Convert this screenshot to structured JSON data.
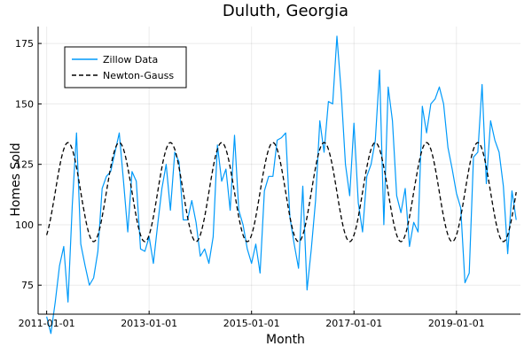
{
  "chart_data": {
    "type": "line",
    "title": "Duluth, Georgia",
    "xlabel": "Month",
    "ylabel": "Homes Sold",
    "x_start": "2011-01",
    "x_ticks": [
      "2011-01-01",
      "2013-01-01",
      "2015-01-01",
      "2017-01-01",
      "2019-01-01"
    ],
    "x_range": [
      "2010-11",
      "2020-04"
    ],
    "y_ticks": [
      75,
      100,
      125,
      150,
      175
    ],
    "ylim": [
      63,
      182
    ],
    "grid": true,
    "legend": "top-left",
    "series": [
      {
        "name": "Zillow Data",
        "color": "#009AFA",
        "style": "solid",
        "values": [
          62,
          55,
          68,
          83,
          91,
          68,
          108,
          138,
          92,
          83,
          75,
          78,
          89,
          115,
          120,
          122,
          130,
          138,
          118,
          97,
          122,
          118,
          90,
          89,
          95,
          84,
          100,
          115,
          125,
          106,
          130,
          126,
          102,
          102,
          110,
          101,
          87,
          90,
          84,
          95,
          133,
          118,
          123,
          106,
          137,
          106,
          100,
          90,
          84,
          92,
          80,
          114,
          120,
          120,
          135,
          136,
          138,
          103,
          92,
          82,
          116,
          73,
          90,
          110,
          143,
          130,
          151,
          150,
          178,
          155,
          125,
          112,
          142,
          109,
          97,
          120,
          125,
          135,
          164,
          100,
          157,
          143,
          112,
          105,
          115,
          91,
          101,
          97,
          149,
          138,
          150,
          152,
          157,
          150,
          132,
          123,
          113,
          107,
          76,
          80,
          128,
          130,
          158,
          117,
          143,
          135,
          130,
          116,
          88,
          114,
          102
        ]
      },
      {
        "name": "Newton-Gauss",
        "color": "#000000",
        "style": "dashed",
        "fit": {
          "mean": 113.5,
          "amplitude": 20.5,
          "period_months": 12,
          "peak_month_offset": 5
        }
      }
    ]
  }
}
